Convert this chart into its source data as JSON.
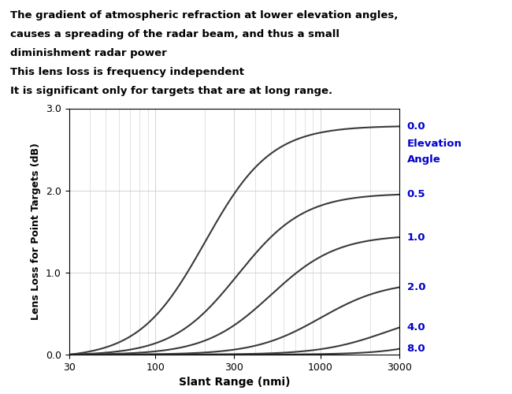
{
  "title_lines": [
    "The gradient of atmospheric refraction at lower elevation angles,",
    "causes a spreading of the radar beam, and thus a small",
    "diminishment radar power",
    "This lens loss is frequency independent",
    "It is significant only for targets that are at long range."
  ],
  "xlabel": "Slant Range (nmi)",
  "ylabel": "Lens Loss for Point Targets (dB)",
  "elevation_label_line1": "Elevation",
  "elevation_label_line2": "Angle",
  "elevation_angles": [
    "0.0",
    "0.5",
    "1.0",
    "2.0",
    "4.0",
    "8.0"
  ],
  "curve_end_values": [
    2.78,
    1.95,
    1.43,
    0.82,
    0.33,
    0.07
  ],
  "ylim": [
    0.0,
    3.0
  ],
  "x_ticks": [
    30,
    100,
    300,
    1000,
    3000
  ],
  "x_tick_labels": [
    "30",
    "100",
    "300",
    "1000",
    "3000"
  ],
  "y_ticks": [
    0.0,
    1.0,
    2.0,
    3.0
  ],
  "y_tick_labels": [
    "0.0",
    "1.0",
    "2.0",
    "3.0"
  ],
  "curve_color": "#3a3a3a",
  "label_color": "#0000CC",
  "background_color": "#ffffff",
  "grid_color": "#cccccc",
  "curve_params": [
    [
      2.78,
      5.0,
      2.3
    ],
    [
      1.95,
      5.0,
      2.5
    ],
    [
      1.43,
      5.0,
      2.7
    ],
    [
      0.82,
      5.0,
      3.0
    ],
    [
      0.33,
      5.0,
      3.4
    ],
    [
      0.07,
      5.0,
      4.2
    ]
  ]
}
